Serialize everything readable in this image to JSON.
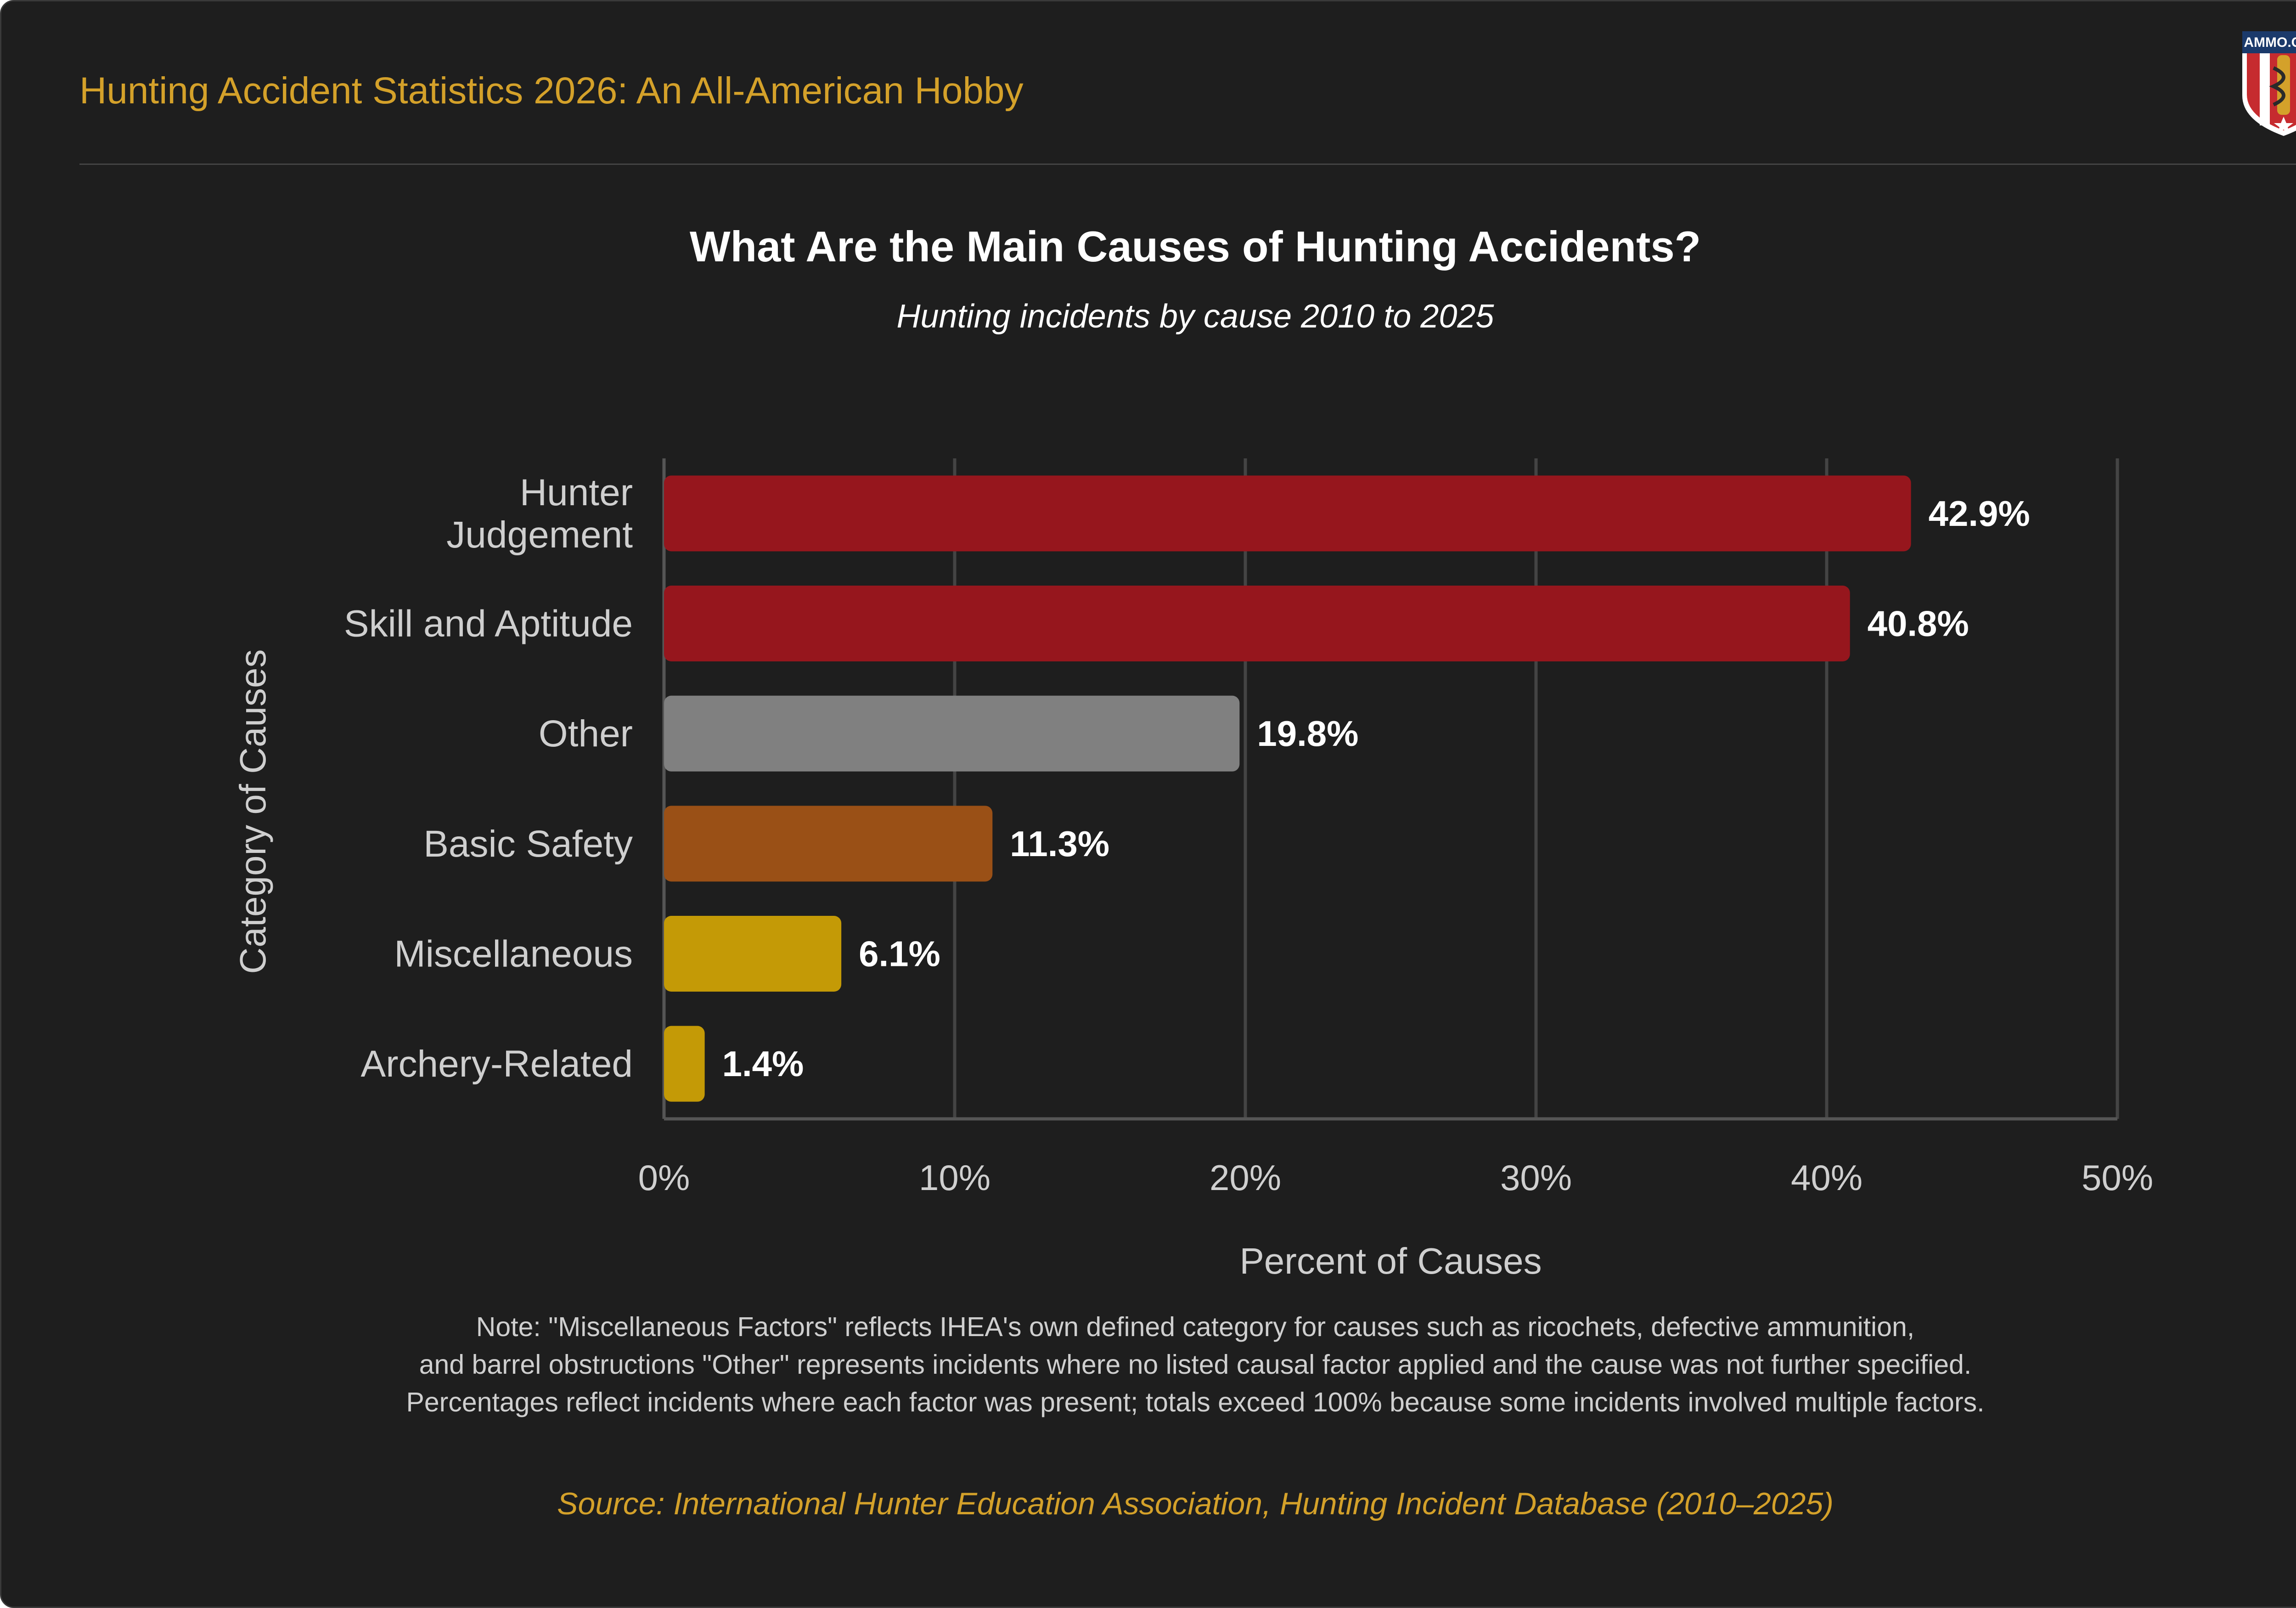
{
  "header": {
    "title": "Hunting Accident Statistics 2026: An All-American Hobby",
    "logo_text": "AMMO.COM"
  },
  "chart_data": {
    "type": "bar",
    "orientation": "horizontal",
    "title": "What Are the Main Causes of Hunting Accidents?",
    "subtitle": "Hunting incidents by cause 2010 to 2025",
    "xlabel": "Percent of Causes",
    "ylabel": "Category of Causes",
    "xlim": [
      0,
      50
    ],
    "xticks": [
      "0%",
      "10%",
      "20%",
      "30%",
      "40%",
      "50%"
    ],
    "grid": true,
    "categories": [
      [
        "Hunter",
        "Judgement"
      ],
      [
        "Skill and Aptitude"
      ],
      [
        "Other"
      ],
      [
        "Basic Safety"
      ],
      [
        "Miscellaneous"
      ],
      [
        "Archery-Related"
      ]
    ],
    "values": [
      42.9,
      40.8,
      19.8,
      11.3,
      6.1,
      1.4
    ],
    "value_labels": [
      "42.9%",
      "40.8%",
      "19.8%",
      "11.3%",
      "6.1%",
      "1.4%"
    ],
    "colors": [
      "#96161d",
      "#96161d",
      "#808080",
      "#9a5016",
      "#c49a06",
      "#c49a06"
    ]
  },
  "note": {
    "lines": [
      "Note: \"Miscellaneous Factors\" reflects IHEA's own defined category for causes such as ricochets, defective ammunition,",
      "and barrel obstructions \"Other\" represents incidents where no listed causal factor applied and the cause was not further specified.",
      "Percentages reflect incidents where each factor was present; totals exceed 100% because some incidents involved multiple factors."
    ]
  },
  "source": "Source: International Hunter Education Association, Hunting Incident Database (2010–2025)"
}
